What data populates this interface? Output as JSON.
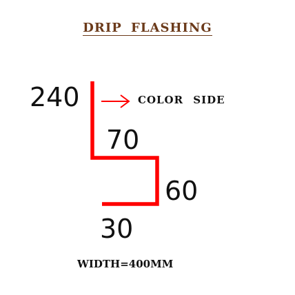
{
  "title": "DRIP  FLASHING",
  "dimensions": {
    "top": "240",
    "step": "70",
    "drop": "60",
    "bottom": "30"
  },
  "color_side_label": "COLOR  SIDE",
  "width_label": "WIDTH=400MM",
  "colors": {
    "profile_line": "#ff0000",
    "arrow": "#ff0000",
    "title": "#6b3a1a",
    "text": "#111111"
  }
}
